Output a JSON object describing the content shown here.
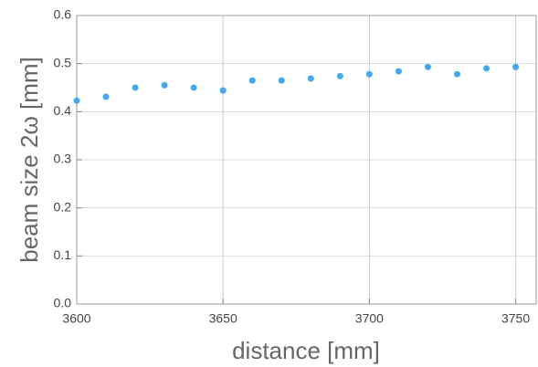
{
  "chart_data": {
    "type": "scatter",
    "x_label": "distance [mm]",
    "y_label": "beam size 2ω [mm]",
    "x": [
      3600,
      3610,
      3620,
      3630,
      3640,
      3650,
      3660,
      3670,
      3680,
      3690,
      3700,
      3710,
      3720,
      3730,
      3740,
      3750
    ],
    "values": [
      0.423,
      0.431,
      0.45,
      0.455,
      0.45,
      0.444,
      0.465,
      0.465,
      0.469,
      0.474,
      0.478,
      0.484,
      0.493,
      0.478,
      0.49,
      0.493
    ],
    "color": "#3fa9f5",
    "xlim": [
      3600,
      3757
    ],
    "xticks": [
      3600,
      3650,
      3700,
      3750
    ],
    "ylim": [
      0,
      0.6
    ],
    "yticks": [
      {
        "value": 0,
        "label": "0.0"
      },
      0.1,
      0.2,
      0.3,
      0.4,
      0.5,
      0.6
    ],
    "grid": true
  }
}
